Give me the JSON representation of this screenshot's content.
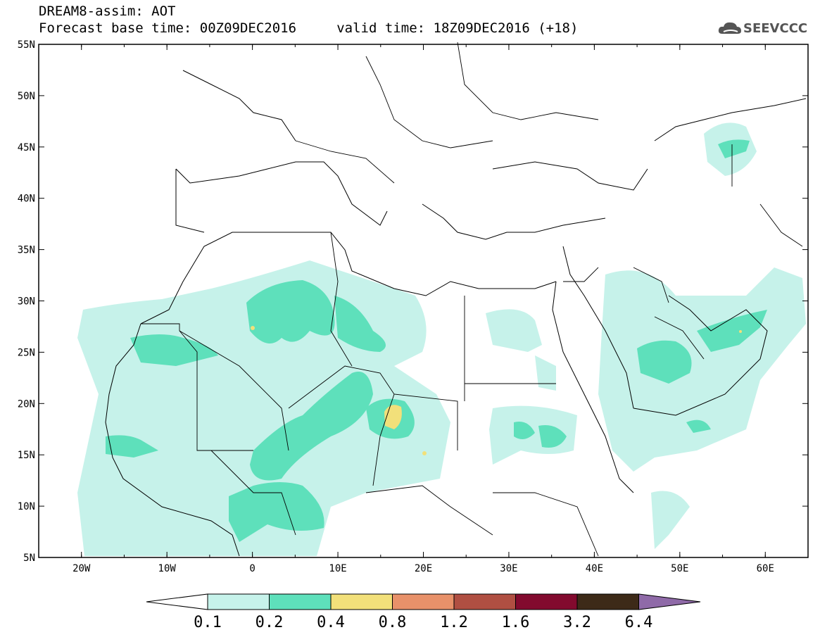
{
  "header": {
    "title": "DREAM8-assim: AOT",
    "subtitle": "Forecast base time: 00Z09DEC2016     valid time: 18Z09DEC2016 (+18)",
    "logo_text": "SEEVCCC"
  },
  "map": {
    "lon_range": [
      -25,
      65
    ],
    "lat_range": [
      5,
      55
    ],
    "lat_labels": [
      "55N",
      "50N",
      "45N",
      "40N",
      "35N",
      "30N",
      "25N",
      "20N",
      "15N",
      "10N",
      "5N"
    ],
    "lon_labels": [
      "20W",
      "10W",
      "0",
      "10E",
      "20E",
      "30E",
      "40E",
      "50E",
      "60E"
    ]
  },
  "colorbar": {
    "labels": [
      "0.1",
      "0.2",
      "0.4",
      "0.8",
      "1.2",
      "1.6",
      "3.2",
      "6.4"
    ],
    "colors": [
      "#ffffff",
      "#c6f2ea",
      "#5ee0bb",
      "#f2e07a",
      "#e8916a",
      "#b04f42",
      "#820a2e",
      "#3d2a18",
      "#8f6aa8"
    ]
  }
}
